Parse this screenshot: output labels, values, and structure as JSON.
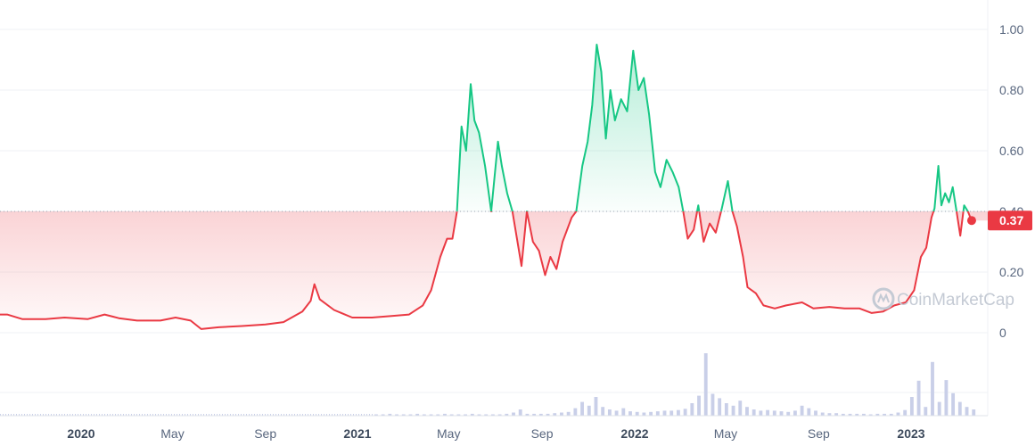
{
  "watermark": {
    "text": "CoinMarketCap"
  },
  "current_price": {
    "label": "0.37",
    "value": 0.37,
    "color": "#ea3943"
  },
  "colors": {
    "up": "#16c784",
    "down": "#ea3943",
    "grid": "#eff2f5",
    "reference_line": "#9aa3b0",
    "volume": "#c9cfe8",
    "axis_text": "#58667e"
  },
  "chart_data": {
    "type": "area",
    "baseline": 0.4,
    "y_axis": {
      "side": "right",
      "ticks": [
        "0",
        "0.20",
        "0.40",
        "0.60",
        "0.80",
        "1.00"
      ],
      "ylim": [
        0,
        1.0
      ]
    },
    "x_axis": {
      "ticks": [
        {
          "label": "2020",
          "date": "2020-01-01",
          "bold": true
        },
        {
          "label": "May",
          "date": "2020-05-01",
          "bold": false
        },
        {
          "label": "Sep",
          "date": "2020-09-01",
          "bold": false
        },
        {
          "label": "2021",
          "date": "2021-01-01",
          "bold": true
        },
        {
          "label": "May",
          "date": "2021-05-01",
          "bold": false
        },
        {
          "label": "Sep",
          "date": "2021-09-01",
          "bold": false
        },
        {
          "label": "2022",
          "date": "2022-01-01",
          "bold": true
        },
        {
          "label": "May",
          "date": "2022-05-01",
          "bold": false
        },
        {
          "label": "Sep",
          "date": "2022-09-01",
          "bold": false
        },
        {
          "label": "2023",
          "date": "2023-01-01",
          "bold": true
        }
      ]
    },
    "series": [
      {
        "type": "line",
        "points": [
          [
            "2019-09-25",
            0.06
          ],
          [
            "2019-10-15",
            0.045
          ],
          [
            "2019-11-15",
            0.045
          ],
          [
            "2019-12-10",
            0.05
          ],
          [
            "2020-01-10",
            0.045
          ],
          [
            "2020-02-01",
            0.06
          ],
          [
            "2020-02-20",
            0.048
          ],
          [
            "2020-03-15",
            0.04
          ],
          [
            "2020-04-15",
            0.04
          ],
          [
            "2020-05-05",
            0.05
          ],
          [
            "2020-05-25",
            0.04
          ],
          [
            "2020-06-08",
            0.012
          ],
          [
            "2020-07-01",
            0.018
          ],
          [
            "2020-08-01",
            0.022
          ],
          [
            "2020-09-01",
            0.027
          ],
          [
            "2020-09-25",
            0.035
          ],
          [
            "2020-10-20",
            0.07
          ],
          [
            "2020-10-31",
            0.105
          ],
          [
            "2020-11-05",
            0.16
          ],
          [
            "2020-11-12",
            0.11
          ],
          [
            "2020-12-01",
            0.075
          ],
          [
            "2020-12-25",
            0.05
          ],
          [
            "2021-01-20",
            0.05
          ],
          [
            "2021-02-15",
            0.055
          ],
          [
            "2021-03-10",
            0.06
          ],
          [
            "2021-03-28",
            0.09
          ],
          [
            "2021-04-08",
            0.14
          ],
          [
            "2021-04-20",
            0.25
          ],
          [
            "2021-04-29",
            0.31
          ],
          [
            "2021-05-06",
            0.31
          ],
          [
            "2021-05-12",
            0.4
          ],
          [
            "2021-05-18",
            0.68
          ],
          [
            "2021-05-24",
            0.6
          ],
          [
            "2021-05-30",
            0.82
          ],
          [
            "2021-06-04",
            0.7
          ],
          [
            "2021-06-10",
            0.66
          ],
          [
            "2021-06-18",
            0.55
          ],
          [
            "2021-06-26",
            0.4
          ],
          [
            "2021-07-05",
            0.63
          ],
          [
            "2021-07-10",
            0.55
          ],
          [
            "2021-07-17",
            0.46
          ],
          [
            "2021-07-24",
            0.4
          ],
          [
            "2021-07-30",
            0.31
          ],
          [
            "2021-08-05",
            0.22
          ],
          [
            "2021-08-12",
            0.4
          ],
          [
            "2021-08-20",
            0.3
          ],
          [
            "2021-08-28",
            0.27
          ],
          [
            "2021-09-05",
            0.19
          ],
          [
            "2021-09-12",
            0.25
          ],
          [
            "2021-09-20",
            0.21
          ],
          [
            "2021-09-28",
            0.3
          ],
          [
            "2021-10-10",
            0.38
          ],
          [
            "2021-10-16",
            0.4
          ],
          [
            "2021-10-24",
            0.55
          ],
          [
            "2021-10-31",
            0.63
          ],
          [
            "2021-11-06",
            0.75
          ],
          [
            "2021-11-12",
            0.95
          ],
          [
            "2021-11-18",
            0.86
          ],
          [
            "2021-11-24",
            0.64
          ],
          [
            "2021-11-30",
            0.8
          ],
          [
            "2021-12-06",
            0.7
          ],
          [
            "2021-12-14",
            0.77
          ],
          [
            "2021-12-22",
            0.73
          ],
          [
            "2021-12-30",
            0.93
          ],
          [
            "2022-01-06",
            0.8
          ],
          [
            "2022-01-13",
            0.84
          ],
          [
            "2022-01-20",
            0.72
          ],
          [
            "2022-01-28",
            0.53
          ],
          [
            "2022-02-04",
            0.48
          ],
          [
            "2022-02-12",
            0.57
          ],
          [
            "2022-02-20",
            0.53
          ],
          [
            "2022-02-28",
            0.48
          ],
          [
            "2022-03-06",
            0.4
          ],
          [
            "2022-03-12",
            0.31
          ],
          [
            "2022-03-20",
            0.34
          ],
          [
            "2022-03-26",
            0.42
          ],
          [
            "2022-04-02",
            0.3
          ],
          [
            "2022-04-10",
            0.36
          ],
          [
            "2022-04-18",
            0.33
          ],
          [
            "2022-04-26",
            0.41
          ],
          [
            "2022-05-04",
            0.5
          ],
          [
            "2022-05-10",
            0.4
          ],
          [
            "2022-05-16",
            0.35
          ],
          [
            "2022-05-24",
            0.25
          ],
          [
            "2022-05-30",
            0.15
          ],
          [
            "2022-06-10",
            0.13
          ],
          [
            "2022-06-20",
            0.09
          ],
          [
            "2022-07-05",
            0.08
          ],
          [
            "2022-07-20",
            0.09
          ],
          [
            "2022-08-10",
            0.1
          ],
          [
            "2022-08-25",
            0.08
          ],
          [
            "2022-09-15",
            0.085
          ],
          [
            "2022-10-05",
            0.08
          ],
          [
            "2022-10-25",
            0.08
          ],
          [
            "2022-11-10",
            0.065
          ],
          [
            "2022-11-25",
            0.07
          ],
          [
            "2022-12-10",
            0.09
          ],
          [
            "2022-12-25",
            0.1
          ],
          [
            "2023-01-05",
            0.14
          ],
          [
            "2023-01-14",
            0.25
          ],
          [
            "2023-01-21",
            0.28
          ],
          [
            "2023-01-28",
            0.38
          ],
          [
            "2023-02-01",
            0.41
          ],
          [
            "2023-02-06",
            0.55
          ],
          [
            "2023-02-10",
            0.42
          ],
          [
            "2023-02-15",
            0.46
          ],
          [
            "2023-02-20",
            0.43
          ],
          [
            "2023-02-25",
            0.48
          ],
          [
            "2023-03-02",
            0.4
          ],
          [
            "2023-03-07",
            0.32
          ],
          [
            "2023-03-12",
            0.42
          ],
          [
            "2023-03-17",
            0.4
          ],
          [
            "2023-03-22",
            0.37
          ]
        ]
      },
      {
        "type": "volume_bars",
        "values_relative": [
          0.02,
          0.02,
          0.03,
          0.02,
          0.02,
          0.02,
          0.03,
          0.02,
          0.02,
          0.02,
          0.03,
          0.02,
          0.02,
          0.02,
          0.03,
          0.02,
          0.02,
          0.02,
          0.02,
          0.03,
          0.05,
          0.1,
          0.03,
          0.03,
          0.03,
          0.03,
          0.04,
          0.05,
          0.06,
          0.12,
          0.22,
          0.16,
          0.3,
          0.14,
          0.1,
          0.08,
          0.12,
          0.07,
          0.06,
          0.05,
          0.06,
          0.07,
          0.08,
          0.08,
          0.09,
          0.11,
          0.2,
          0.32,
          1.0,
          0.35,
          0.28,
          0.2,
          0.16,
          0.24,
          0.14,
          0.1,
          0.08,
          0.09,
          0.08,
          0.07,
          0.06,
          0.08,
          0.16,
          0.12,
          0.08,
          0.05,
          0.04,
          0.04,
          0.03,
          0.03,
          0.03,
          0.03,
          0.02,
          0.03,
          0.03,
          0.03,
          0.05,
          0.09,
          0.3,
          0.56,
          0.14,
          0.86,
          0.22,
          0.57,
          0.36,
          0.22,
          0.14,
          0.1
        ]
      }
    ]
  }
}
